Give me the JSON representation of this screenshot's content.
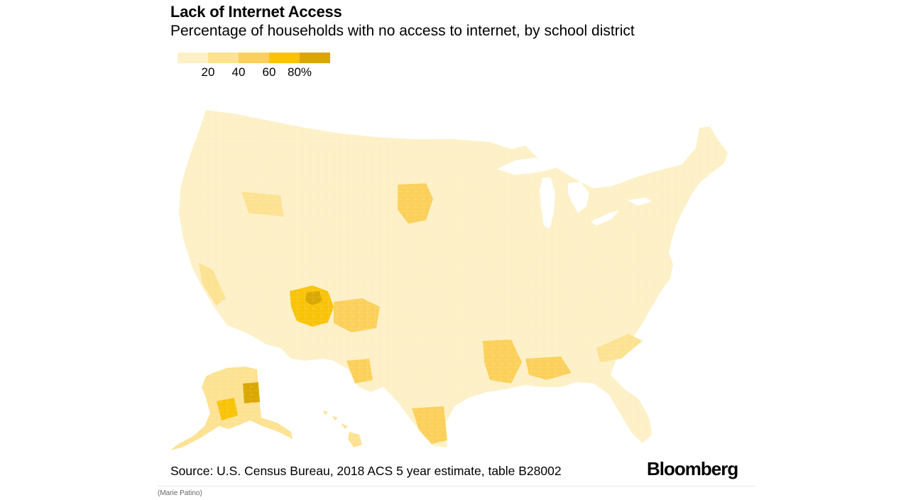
{
  "header": {
    "title": "Lack of Internet Access",
    "subtitle": "Percentage of households with no access to internet, by school district"
  },
  "legend": {
    "ticks": [
      "20",
      "40",
      "60",
      "80%"
    ],
    "colors": [
      "#fdf0c7",
      "#fce291",
      "#fbd05a",
      "#f9c306",
      "#d9a700"
    ]
  },
  "map": {
    "regions": [
      {
        "name": "contiguous-us",
        "level": 1
      },
      {
        "name": "alaska",
        "level": 1
      },
      {
        "name": "hawaii",
        "level": 1
      }
    ],
    "hotspots": [
      {
        "name": "navajo-nation",
        "level": 3
      },
      {
        "name": "south-dakota-reservations",
        "level": 2
      },
      {
        "name": "rio-grande-valley",
        "level": 2
      },
      {
        "name": "mississippi-delta",
        "level": 2
      },
      {
        "name": "southwest-alaska",
        "level": 3
      }
    ]
  },
  "footer": {
    "source": "Source: U.S. Census Bureau, 2018 ACS 5 year estimate, table B28002",
    "brand": "Bloomberg",
    "credit": "(Marie Patino)"
  }
}
